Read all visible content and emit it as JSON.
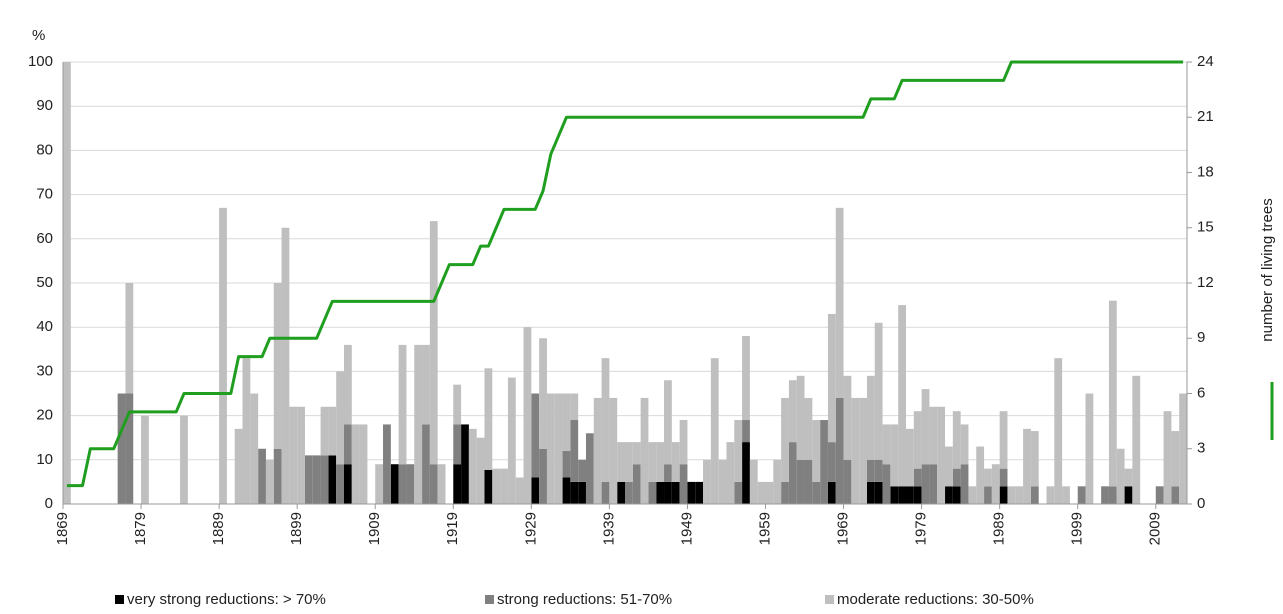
{
  "chart_data": {
    "type": "bar",
    "stacked": true,
    "ylabel": "%",
    "x": [
      1869,
      1870,
      1871,
      1872,
      1873,
      1874,
      1875,
      1876,
      1877,
      1878,
      1879,
      1880,
      1881,
      1882,
      1883,
      1884,
      1885,
      1886,
      1887,
      1888,
      1889,
      1890,
      1891,
      1892,
      1893,
      1894,
      1895,
      1896,
      1897,
      1898,
      1899,
      1900,
      1901,
      1902,
      1903,
      1904,
      1905,
      1906,
      1907,
      1908,
      1909,
      1910,
      1911,
      1912,
      1913,
      1914,
      1915,
      1916,
      1917,
      1918,
      1919,
      1920,
      1921,
      1922,
      1923,
      1924,
      1925,
      1926,
      1927,
      1928,
      1929,
      1930,
      1931,
      1932,
      1933,
      1934,
      1935,
      1936,
      1937,
      1938,
      1939,
      1940,
      1941,
      1942,
      1943,
      1944,
      1945,
      1946,
      1947,
      1948,
      1949,
      1950,
      1951,
      1952,
      1953,
      1954,
      1955,
      1956,
      1957,
      1958,
      1959,
      1960,
      1961,
      1962,
      1963,
      1964,
      1965,
      1966,
      1967,
      1968,
      1969,
      1970,
      1971,
      1972,
      1973,
      1974,
      1975,
      1976,
      1977,
      1978,
      1979,
      1980,
      1981,
      1982,
      1983,
      1984,
      1985,
      1986,
      1987,
      1988,
      1989,
      1990,
      1991,
      1992,
      1993,
      1994,
      1995,
      1996,
      1997,
      1998,
      1999,
      2000,
      2001,
      2002,
      2003,
      2004,
      2005,
      2006,
      2007,
      2008,
      2009,
      2010,
      2011,
      2012
    ],
    "xlim": [
      1869,
      2013
    ],
    "xticks": [
      1869,
      1879,
      1889,
      1899,
      1909,
      1919,
      1929,
      1939,
      1949,
      1959,
      1969,
      1979,
      1989,
      1999,
      2009
    ],
    "ylim": [
      0,
      100
    ],
    "yticks": [
      0,
      10,
      20,
      30,
      40,
      50,
      60,
      70,
      80,
      90,
      100
    ],
    "y2lim": [
      0,
      24
    ],
    "y2ticks": [
      0,
      3,
      6,
      9,
      12,
      15,
      18,
      21,
      24
    ],
    "grid": true,
    "series": [
      {
        "name": "very strong reductions: > 70%",
        "color": "#000000",
        "values": [
          0,
          0,
          0,
          0,
          0,
          0,
          0,
          0,
          0,
          0,
          0,
          0,
          0,
          0,
          0,
          0,
          0,
          0,
          0,
          0,
          0,
          0,
          0,
          0,
          0,
          0,
          0,
          0,
          0,
          0,
          0,
          0,
          0,
          0,
          11,
          0,
          9,
          0,
          0,
          0,
          0,
          0,
          9,
          0,
          0,
          0,
          0,
          0,
          0,
          0,
          9,
          18,
          0,
          0,
          7.7,
          0,
          0,
          0,
          0,
          0,
          6,
          0,
          0,
          0,
          6,
          5,
          5,
          0,
          0,
          0,
          0,
          5,
          0,
          0,
          0,
          0,
          5,
          5,
          5,
          0,
          5,
          5,
          0,
          0,
          0,
          0,
          0,
          14,
          0,
          0,
          0,
          0,
          0,
          0,
          0,
          0,
          0,
          0,
          5,
          0,
          0,
          0,
          0,
          5,
          5,
          0,
          4,
          4,
          4,
          4,
          0,
          0,
          0,
          4,
          4,
          0,
          0,
          0,
          0,
          0,
          4,
          0,
          0,
          0,
          0,
          0,
          0,
          0,
          0,
          0,
          0,
          0,
          0,
          0,
          0,
          0,
          4,
          0,
          0,
          0,
          0,
          0,
          0,
          0
        ]
      },
      {
        "name": "strong reductions: 51-70%",
        "color": "#808080",
        "values": [
          0,
          0,
          0,
          0,
          0,
          0,
          0,
          25,
          25,
          0,
          0,
          0,
          0,
          0,
          0,
          0,
          0,
          0,
          0,
          0,
          0,
          0,
          0,
          0,
          0,
          12.5,
          0,
          12.5,
          0,
          0,
          0,
          11,
          11,
          11,
          0,
          9,
          9,
          0,
          0,
          0,
          0,
          18,
          0,
          9,
          9,
          0,
          18,
          9,
          0,
          0,
          9,
          0,
          0,
          0,
          0,
          0,
          0,
          0,
          0,
          0,
          19,
          12.5,
          0,
          0,
          6,
          14,
          5,
          16,
          0,
          5,
          0,
          0,
          5,
          9,
          0,
          5,
          0,
          4,
          0,
          9,
          0,
          0,
          0,
          0,
          0,
          0,
          5,
          5,
          0,
          0,
          0,
          0,
          5,
          14,
          10,
          10,
          5,
          19,
          9,
          24,
          10,
          0,
          0,
          5,
          5,
          9,
          0,
          0,
          0,
          4,
          9,
          9,
          0,
          0,
          4,
          9,
          0,
          0,
          4,
          0,
          4,
          0,
          0,
          0,
          4,
          0,
          0,
          0,
          0,
          0,
          4,
          0,
          0,
          4,
          4,
          0,
          0,
          0,
          0,
          0,
          4,
          0,
          4,
          0
        ]
      },
      {
        "name": "moderate reductions: 30-50%",
        "color": "#bfbfbf",
        "values": [
          100,
          0,
          0,
          0,
          0,
          0,
          0,
          0,
          25,
          0,
          20,
          0,
          0,
          0,
          0,
          20,
          0,
          0,
          0,
          0,
          67,
          0,
          17,
          33,
          25,
          0,
          10,
          37.5,
          62.5,
          22,
          22,
          0,
          0,
          11,
          11,
          21,
          18,
          18,
          18,
          0,
          9,
          0,
          0,
          27,
          0,
          36,
          18,
          55,
          9,
          0,
          9,
          0,
          17,
          15,
          23,
          8,
          8,
          28.6,
          6,
          40,
          0,
          25,
          25,
          25,
          13,
          6,
          0,
          0,
          24,
          28,
          24,
          9,
          9,
          5,
          24,
          9,
          9,
          19,
          9,
          10,
          0,
          0,
          10,
          33,
          10,
          14,
          14,
          19,
          10,
          5,
          5,
          10,
          19,
          14,
          19,
          14,
          14,
          0,
          29,
          43,
          19,
          24,
          24,
          19,
          31,
          9,
          14,
          41,
          13,
          13,
          17,
          13,
          22,
          9,
          13,
          9,
          4,
          13,
          4,
          9,
          13,
          4,
          4,
          17,
          12.5,
          0,
          4,
          33,
          4,
          0,
          0,
          25,
          0,
          0,
          42,
          12.5,
          4,
          29,
          0,
          0,
          0,
          21,
          12.5,
          25
        ]
      },
      {
        "name": "number of living trees",
        "color": "#1f9e1f",
        "type": "line",
        "axis": "y2",
        "values": [
          1,
          1,
          1,
          3,
          3,
          3,
          3,
          4,
          5,
          5,
          5,
          5,
          5,
          5,
          5,
          6,
          6,
          6,
          6,
          6,
          6,
          6,
          8,
          8,
          8,
          8,
          9,
          9,
          9,
          9,
          9,
          9,
          9,
          10,
          11,
          11,
          11,
          11,
          11,
          11,
          11,
          11,
          11,
          11,
          11,
          11,
          11,
          11,
          12,
          13,
          13,
          13,
          13,
          14,
          14,
          15,
          16,
          16,
          16,
          16,
          16,
          17,
          19,
          20,
          21,
          21,
          21,
          21,
          21,
          21,
          21,
          21,
          21,
          21,
          21,
          21,
          21,
          21,
          21,
          21,
          21,
          21,
          21,
          21,
          21,
          21,
          21,
          21,
          21,
          21,
          21,
          21,
          21,
          21,
          21,
          21,
          21,
          21,
          21,
          21,
          21,
          21,
          21,
          22,
          22,
          22,
          22,
          23,
          23,
          23,
          23,
          23,
          23,
          23,
          23,
          23,
          23,
          23,
          23,
          23,
          23,
          24,
          24,
          24,
          24,
          24,
          24,
          24,
          24,
          24,
          24,
          24,
          24,
          24,
          24,
          24,
          24,
          24,
          24,
          24,
          24,
          24,
          24,
          24
        ]
      }
    ]
  }
}
